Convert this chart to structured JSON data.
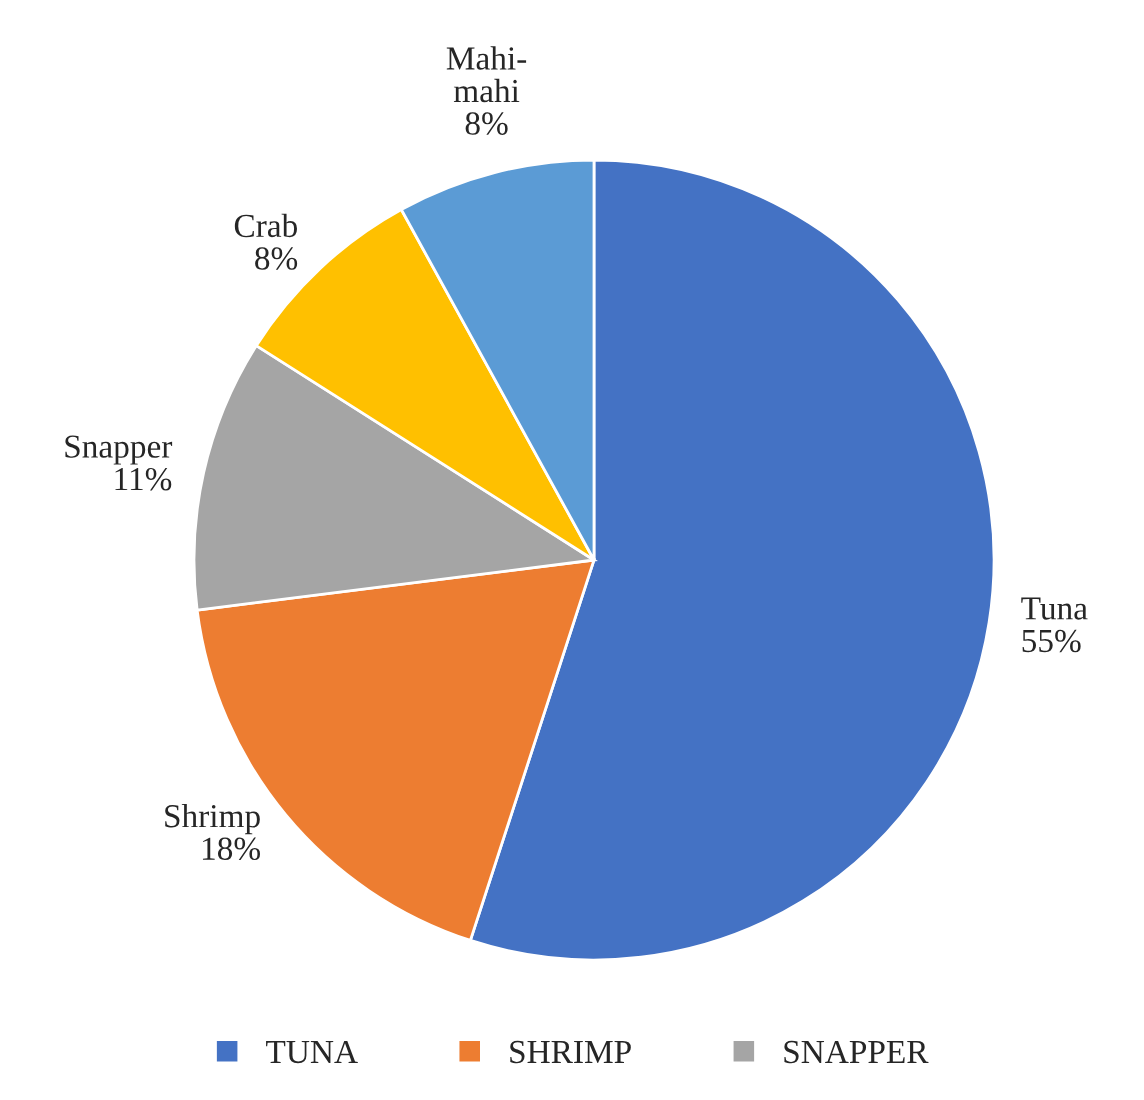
{
  "chart_data": {
    "type": "pie",
    "categories": [
      "TUNA",
      "SHRIMP",
      "SNAPPER",
      null,
      null
    ],
    "values": [
      55,
      18,
      11,
      8,
      8
    ],
    "colors": [
      "#4472c4",
      "#ed7d31",
      "#a5a5a5",
      "#ffc000",
      "#5b9bd5"
    ],
    "value_labels": [
      "Tuna\n55%",
      "Shrimp\n18%",
      "Snapper\n11%",
      "Crab\n8%",
      "Mahi-\nmahi\n8%"
    ],
    "legend": "bottom"
  }
}
